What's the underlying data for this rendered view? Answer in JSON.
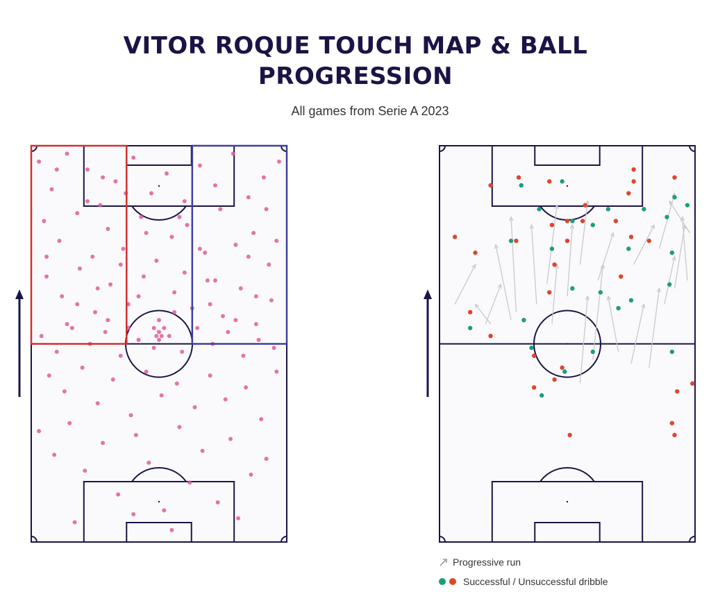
{
  "title_line1": "VITOR ROQUE TOUCH MAP & BALL",
  "title_line2": "PROGRESSION",
  "subtitle": "All games from Serie A 2023",
  "legend": {
    "progressive_run": "Progressive run",
    "dribble": "Successful / Unsuccessful dribble"
  },
  "colors": {
    "touch": "#e05a97",
    "pitch_line": "#1a1446",
    "left_zone": "#d32f2f",
    "right_zone": "#3f3fa0",
    "success": "#1a9e7b",
    "fail": "#e0452b",
    "arrow": "#c9c9c9"
  },
  "chart_data": [
    {
      "type": "scatter",
      "name": "touch-map",
      "direction_of_attack": "up",
      "touches": [
        [
          3,
          4
        ],
        [
          8,
          11
        ],
        [
          14,
          2
        ],
        [
          22,
          6
        ],
        [
          27,
          15
        ],
        [
          33,
          9
        ],
        [
          40,
          3
        ],
        [
          47,
          12
        ],
        [
          53,
          7
        ],
        [
          60,
          14
        ],
        [
          66,
          5
        ],
        [
          72,
          10
        ],
        [
          79,
          2
        ],
        [
          85,
          13
        ],
        [
          91,
          8
        ],
        [
          97,
          4
        ],
        [
          5,
          19
        ],
        [
          11,
          24
        ],
        [
          18,
          17
        ],
        [
          24,
          28
        ],
        [
          30,
          21
        ],
        [
          36,
          26
        ],
        [
          43,
          18
        ],
        [
          49,
          29
        ],
        [
          55,
          23
        ],
        [
          61,
          20
        ],
        [
          68,
          27
        ],
        [
          74,
          16
        ],
        [
          80,
          25
        ],
        [
          87,
          22
        ],
        [
          93,
          30
        ],
        [
          6,
          33
        ],
        [
          12,
          38
        ],
        [
          19,
          31
        ],
        [
          25,
          42
        ],
        [
          31,
          35
        ],
        [
          38,
          40
        ],
        [
          44,
          33
        ],
        [
          50,
          44
        ],
        [
          56,
          37
        ],
        [
          63,
          41
        ],
        [
          69,
          34
        ],
        [
          75,
          43
        ],
        [
          82,
          36
        ],
        [
          88,
          45
        ],
        [
          94,
          39
        ],
        [
          4,
          48
        ],
        [
          10,
          52
        ],
        [
          16,
          46
        ],
        [
          23,
          50
        ],
        [
          29,
          47
        ],
        [
          35,
          53
        ],
        [
          42,
          49
        ],
        [
          48,
          51
        ],
        [
          54,
          48
        ],
        [
          59,
          52
        ],
        [
          65,
          46
        ],
        [
          71,
          50
        ],
        [
          77,
          47
        ],
        [
          83,
          53
        ],
        [
          89,
          49
        ],
        [
          95,
          51
        ],
        [
          7,
          58
        ],
        [
          13,
          62
        ],
        [
          20,
          56
        ],
        [
          26,
          65
        ],
        [
          32,
          59
        ],
        [
          39,
          68
        ],
        [
          45,
          57
        ],
        [
          51,
          63
        ],
        [
          57,
          60
        ],
        [
          64,
          66
        ],
        [
          70,
          58
        ],
        [
          76,
          64
        ],
        [
          84,
          61
        ],
        [
          90,
          69
        ],
        [
          96,
          57
        ],
        [
          3,
          72
        ],
        [
          9,
          78
        ],
        [
          15,
          70
        ],
        [
          21,
          82
        ],
        [
          28,
          75
        ],
        [
          34,
          88
        ],
        [
          41,
          73
        ],
        [
          46,
          80
        ],
        [
          52,
          92
        ],
        [
          58,
          71
        ],
        [
          62,
          85
        ],
        [
          67,
          77
        ],
        [
          73,
          90
        ],
        [
          78,
          74
        ],
        [
          86,
          83
        ],
        [
          92,
          79
        ],
        [
          17,
          95
        ],
        [
          40,
          93
        ],
        [
          55,
          97
        ],
        [
          81,
          94
        ],
        [
          50,
          49
        ],
        [
          50,
          47
        ],
        [
          51,
          48
        ],
        [
          49,
          48
        ],
        [
          52,
          46
        ],
        [
          48,
          46
        ],
        [
          37,
          12
        ],
        [
          28,
          8
        ],
        [
          45,
          22
        ],
        [
          35,
          30
        ],
        [
          22,
          14
        ],
        [
          18,
          40
        ],
        [
          30,
          44
        ],
        [
          42,
          38
        ],
        [
          60,
          32
        ],
        [
          66,
          26
        ],
        [
          58,
          18
        ],
        [
          72,
          34
        ],
        [
          85,
          28
        ],
        [
          92,
          16
        ],
        [
          10,
          6
        ],
        [
          6,
          28
        ],
        [
          14,
          45
        ],
        [
          26,
          36
        ],
        [
          38,
          46
        ],
        [
          56,
          42
        ],
        [
          70,
          40
        ],
        [
          80,
          44
        ],
        [
          88,
          38
        ],
        [
          96,
          24
        ]
      ]
    },
    {
      "type": "scatter",
      "name": "ball-progression",
      "direction_of_attack": "up",
      "successful_dribbles": [
        [
          48,
          9
        ],
        [
          32,
          10
        ],
        [
          39,
          16
        ],
        [
          66,
          16
        ],
        [
          80,
          16
        ],
        [
          52,
          19
        ],
        [
          60,
          20
        ],
        [
          92,
          13
        ],
        [
          97,
          15
        ],
        [
          89,
          18
        ],
        [
          28,
          24
        ],
        [
          44,
          26
        ],
        [
          52,
          36
        ],
        [
          63,
          37
        ],
        [
          74,
          26
        ],
        [
          12,
          46
        ],
        [
          36,
          51
        ],
        [
          49,
          57
        ],
        [
          91,
          27
        ],
        [
          90,
          35
        ],
        [
          33,
          44
        ],
        [
          60,
          52
        ],
        [
          70,
          41
        ],
        [
          40,
          63
        ],
        [
          75,
          39
        ],
        [
          91,
          52
        ]
      ],
      "unsuccessful_dribbles": [
        [
          76,
          6
        ],
        [
          31,
          8
        ],
        [
          43,
          9
        ],
        [
          20,
          10
        ],
        [
          76,
          9
        ],
        [
          92,
          8
        ],
        [
          74,
          12
        ],
        [
          50,
          19
        ],
        [
          57,
          15
        ],
        [
          30,
          24
        ],
        [
          44,
          20
        ],
        [
          56,
          19
        ],
        [
          69,
          19
        ],
        [
          75,
          23
        ],
        [
          82,
          24
        ],
        [
          50,
          24
        ],
        [
          6,
          23
        ],
        [
          14,
          27
        ],
        [
          12,
          42
        ],
        [
          45,
          30
        ],
        [
          43,
          37
        ],
        [
          20,
          48
        ],
        [
          37,
          53
        ],
        [
          45,
          59
        ],
        [
          48,
          56
        ],
        [
          37,
          61
        ],
        [
          91,
          70
        ],
        [
          99,
          60
        ],
        [
          93,
          62
        ],
        [
          51,
          73
        ],
        [
          92,
          73
        ],
        [
          71,
          33
        ]
      ],
      "progressive_runs": [
        [
          [
            18,
            45
          ],
          [
            24,
            35
          ]
        ],
        [
          [
            30,
            42
          ],
          [
            28,
            18
          ]
        ],
        [
          [
            38,
            40
          ],
          [
            36,
            20
          ]
        ],
        [
          [
            42,
            35
          ],
          [
            46,
            15
          ]
        ],
        [
          [
            50,
            38
          ],
          [
            52,
            20
          ]
        ],
        [
          [
            55,
            60
          ],
          [
            58,
            38
          ]
        ],
        [
          [
            60,
            54
          ],
          [
            64,
            30
          ]
        ],
        [
          [
            70,
            52
          ],
          [
            66,
            38
          ]
        ],
        [
          [
            75,
            55
          ],
          [
            80,
            40
          ]
        ],
        [
          [
            82,
            56
          ],
          [
            86,
            36
          ]
        ],
        [
          [
            88,
            40
          ],
          [
            92,
            28
          ]
        ],
        [
          [
            92,
            36
          ],
          [
            96,
            20
          ]
        ],
        [
          [
            97,
            34
          ],
          [
            95,
            18
          ]
        ],
        [
          [
            20,
            45
          ],
          [
            14,
            40
          ]
        ],
        [
          [
            62,
            34
          ],
          [
            68,
            22
          ]
        ],
        [
          [
            76,
            30
          ],
          [
            84,
            20
          ]
        ],
        [
          [
            86,
            26
          ],
          [
            92,
            12
          ]
        ],
        [
          [
            44,
            45
          ],
          [
            46,
            30
          ]
        ],
        [
          [
            55,
            30
          ],
          [
            58,
            14
          ]
        ],
        [
          [
            28,
            44
          ],
          [
            22,
            25
          ]
        ],
        [
          [
            6,
            40
          ],
          [
            14,
            30
          ]
        ],
        [
          [
            98,
            22
          ],
          [
            90,
            14
          ]
        ]
      ]
    }
  ]
}
